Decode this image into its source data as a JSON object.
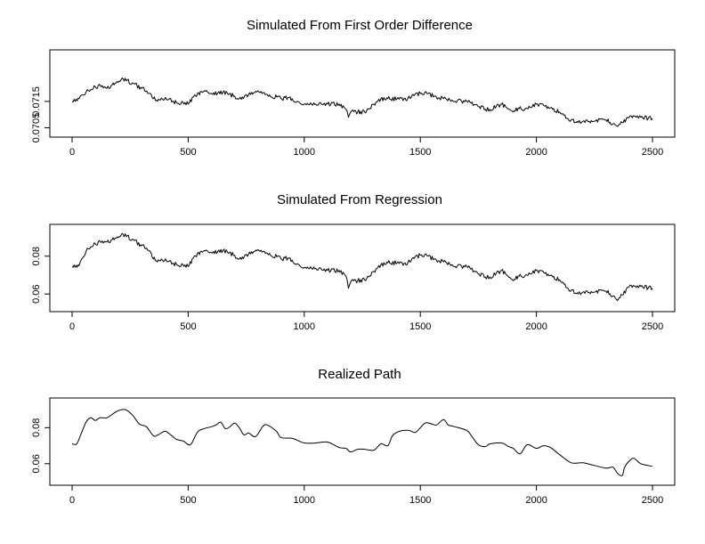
{
  "chart_data": [
    {
      "type": "line",
      "title": "Simulated From First Order Difference",
      "xlabel": "",
      "ylabel": "",
      "xlim": [
        0,
        2500
      ],
      "ylim": [
        0.07035,
        0.07325
      ],
      "xticks": [
        0,
        500,
        1000,
        1500,
        2000,
        2500
      ],
      "xtick_labels": [
        "0",
        "500",
        "1000",
        "1500",
        "2000",
        "2500"
      ],
      "yticks": [
        0.0705,
        0.0715
      ],
      "ytick_labels": [
        "0.0705",
        "0.0715"
      ],
      "rough": true,
      "grid": false,
      "x": [
        0,
        30,
        60,
        80,
        100,
        130,
        150,
        190,
        220,
        260,
        300,
        330,
        350,
        380,
        420,
        450,
        500,
        540,
        570,
        600,
        650,
        700,
        720,
        760,
        800,
        850,
        900,
        930,
        970,
        1000,
        1050,
        1100,
        1150,
        1180,
        1190,
        1200,
        1230,
        1260,
        1300,
        1330,
        1360,
        1400,
        1430,
        1460,
        1500,
        1520,
        1560,
        1600,
        1650,
        1700,
        1750,
        1780,
        1800,
        1850,
        1880,
        1900,
        1930,
        1950,
        2000,
        2050,
        2070,
        2100,
        2150,
        2180,
        2200,
        2250,
        2300,
        2330,
        2350,
        2370,
        2400,
        2430,
        2450,
        2500
      ],
      "y": [
        0.0715,
        0.0716,
        0.07185,
        0.07195,
        0.07205,
        0.0721,
        0.072,
        0.0722,
        0.07235,
        0.0722,
        0.072,
        0.0718,
        0.0716,
        0.07155,
        0.0716,
        0.07145,
        0.0714,
        0.0718,
        0.0719,
        0.0718,
        0.07185,
        0.0717,
        0.0716,
        0.07175,
        0.0719,
        0.07175,
        0.0716,
        0.07165,
        0.0715,
        0.0714,
        0.0714,
        0.0714,
        0.0714,
        0.0712,
        0.0709,
        0.0711,
        0.0711,
        0.0711,
        0.0714,
        0.0716,
        0.0716,
        0.0716,
        0.0716,
        0.07165,
        0.0718,
        0.07185,
        0.0717,
        0.0716,
        0.0715,
        0.0715,
        0.0713,
        0.0712,
        0.0712,
        0.0714,
        0.0712,
        0.0711,
        0.0713,
        0.0712,
        0.0714,
        0.0713,
        0.0712,
        0.0711,
        0.0708,
        0.0707,
        0.07075,
        0.07075,
        0.0708,
        0.07065,
        0.07055,
        0.0707,
        0.0709,
        0.0709,
        0.0709,
        0.07085
      ]
    },
    {
      "type": "line",
      "title": "Simulated From Regression",
      "xlabel": "",
      "ylabel": "",
      "xlim": [
        0,
        2500
      ],
      "ylim": [
        0.0535,
        0.094
      ],
      "xticks": [
        0,
        500,
        1000,
        1500,
        2000,
        2500
      ],
      "xtick_labels": [
        "0",
        "500",
        "1000",
        "1500",
        "2000",
        "2500"
      ],
      "yticks": [
        0.06,
        0.08
      ],
      "ytick_labels": [
        "0.06",
        "0.08"
      ],
      "rough": true,
      "grid": false,
      "x": [
        0,
        30,
        60,
        80,
        100,
        130,
        150,
        190,
        220,
        260,
        300,
        330,
        350,
        380,
        420,
        450,
        500,
        540,
        570,
        600,
        650,
        700,
        720,
        760,
        800,
        850,
        900,
        930,
        970,
        1000,
        1050,
        1100,
        1150,
        1180,
        1190,
        1200,
        1230,
        1260,
        1300,
        1330,
        1360,
        1400,
        1430,
        1460,
        1500,
        1520,
        1560,
        1600,
        1650,
        1700,
        1750,
        1780,
        1800,
        1850,
        1880,
        1900,
        1930,
        1950,
        2000,
        2050,
        2070,
        2100,
        2150,
        2180,
        2200,
        2250,
        2300,
        2330,
        2350,
        2370,
        2400,
        2430,
        2450,
        2500
      ],
      "y": [
        0.0745,
        0.075,
        0.0825,
        0.085,
        0.0865,
        0.088,
        0.0875,
        0.0895,
        0.0915,
        0.089,
        0.0855,
        0.083,
        0.0785,
        0.0775,
        0.0775,
        0.0755,
        0.0745,
        0.0815,
        0.083,
        0.082,
        0.083,
        0.0805,
        0.0785,
        0.081,
        0.0835,
        0.0815,
        0.0785,
        0.079,
        0.076,
        0.074,
        0.0735,
        0.0725,
        0.0725,
        0.0695,
        0.063,
        0.0665,
        0.067,
        0.0675,
        0.072,
        0.0755,
        0.0765,
        0.0765,
        0.076,
        0.0775,
        0.0805,
        0.081,
        0.0785,
        0.077,
        0.0745,
        0.0745,
        0.0705,
        0.069,
        0.069,
        0.0725,
        0.069,
        0.067,
        0.0705,
        0.0695,
        0.0725,
        0.0705,
        0.069,
        0.0675,
        0.062,
        0.06,
        0.061,
        0.061,
        0.0615,
        0.059,
        0.0565,
        0.0595,
        0.064,
        0.0635,
        0.064,
        0.063
      ]
    },
    {
      "type": "line",
      "title": "Realized Path",
      "xlabel": "",
      "ylabel": "",
      "xlim": [
        0,
        2500
      ],
      "ylim": [
        0.051,
        0.0935
      ],
      "xticks": [
        0,
        500,
        1000,
        1500,
        2000,
        2500
      ],
      "xtick_labels": [
        "0",
        "500",
        "1000",
        "1500",
        "2000",
        "2500"
      ],
      "yticks": [
        0.06,
        0.08
      ],
      "ytick_labels": [
        "0.06",
        "0.08"
      ],
      "rough": false,
      "grid": false,
      "x": [
        0,
        20,
        40,
        60,
        80,
        100,
        120,
        150,
        180,
        200,
        230,
        260,
        290,
        320,
        350,
        370,
        400,
        420,
        450,
        480,
        510,
        540,
        570,
        600,
        620,
        640,
        660,
        680,
        700,
        720,
        740,
        760,
        790,
        820,
        840,
        880,
        900,
        950,
        1000,
        1050,
        1100,
        1150,
        1180,
        1200,
        1230,
        1260,
        1300,
        1330,
        1360,
        1380,
        1410,
        1450,
        1480,
        1520,
        1550,
        1570,
        1600,
        1620,
        1650,
        1700,
        1720,
        1750,
        1780,
        1800,
        1850,
        1880,
        1900,
        1930,
        1960,
        2000,
        2030,
        2060,
        2100,
        2150,
        2200,
        2250,
        2300,
        2330,
        2350,
        2370,
        2380,
        2400,
        2420,
        2450,
        2500
      ],
      "y": [
        0.071,
        0.071,
        0.077,
        0.083,
        0.0855,
        0.084,
        0.0855,
        0.0855,
        0.088,
        0.0895,
        0.09,
        0.087,
        0.082,
        0.0805,
        0.0755,
        0.076,
        0.078,
        0.0765,
        0.0735,
        0.0725,
        0.0705,
        0.0775,
        0.0795,
        0.0805,
        0.0815,
        0.083,
        0.0795,
        0.0805,
        0.0825,
        0.08,
        0.076,
        0.077,
        0.075,
        0.0805,
        0.0815,
        0.078,
        0.0745,
        0.074,
        0.0715,
        0.0715,
        0.072,
        0.069,
        0.0685,
        0.0665,
        0.068,
        0.068,
        0.0675,
        0.071,
        0.07,
        0.0755,
        0.078,
        0.0785,
        0.0775,
        0.0825,
        0.082,
        0.0815,
        0.0845,
        0.0815,
        0.0805,
        0.0785,
        0.0755,
        0.0705,
        0.0695,
        0.071,
        0.0715,
        0.0695,
        0.0685,
        0.0655,
        0.0705,
        0.0685,
        0.07,
        0.069,
        0.065,
        0.0605,
        0.0605,
        0.059,
        0.0575,
        0.058,
        0.0545,
        0.0535,
        0.058,
        0.0615,
        0.063,
        0.06,
        0.0585
      ]
    }
  ]
}
